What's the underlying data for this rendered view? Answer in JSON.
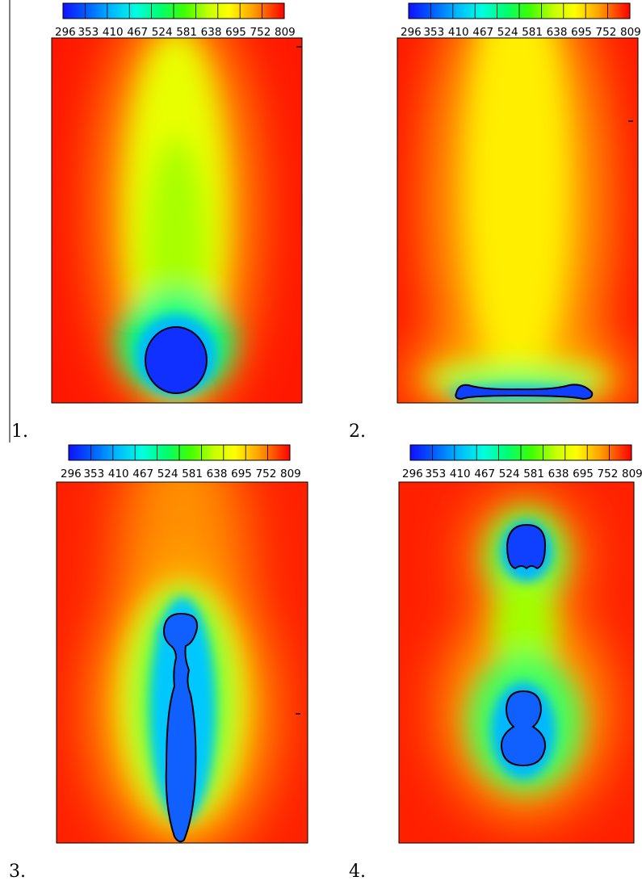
{
  "figure": {
    "colorbar": {
      "tick_labels": [
        "296",
        "353",
        "410",
        "467",
        "524",
        "581",
        "638",
        "695",
        "752",
        "809"
      ],
      "min": 296,
      "max": 809,
      "colors": [
        "#1010ff",
        "#00a0ff",
        "#00ffff",
        "#00ff80",
        "#00ff00",
        "#80ff00",
        "#ffff00",
        "#ffb000",
        "#ff6000",
        "#ff0000"
      ]
    },
    "panels": [
      {
        "label": "1."
      },
      {
        "label": "2."
      },
      {
        "label": "3."
      },
      {
        "label": "4."
      }
    ]
  }
}
